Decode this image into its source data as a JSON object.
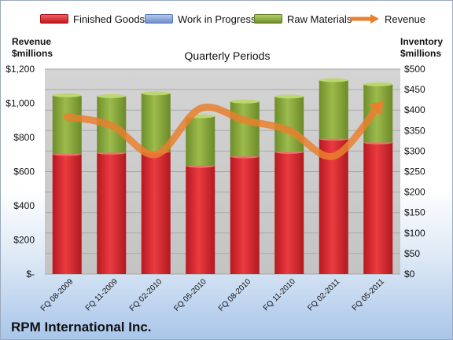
{
  "legend": {
    "finished": "Finished Goods",
    "wip": "Work in Progress",
    "raw": "Raw Materials",
    "revenue": "Revenue"
  },
  "titles": {
    "left_axis": "Revenue\n$millions",
    "right_axis": "Inventory\n$millions",
    "periods": "Quarterly Periods",
    "company": "RPM International Inc."
  },
  "colors": {
    "finished": "#d9252d",
    "wip": "#7f9fd6",
    "raw": "#86a83a",
    "revenue": "#e9802f",
    "plot_bg": "#c9c9c9"
  },
  "chart_data": {
    "type": "bar",
    "stacked": true,
    "title": "Quarterly Periods",
    "categories": [
      "FQ 08-2009",
      "FQ 11-2009",
      "FQ 02-2010",
      "FQ 05-2010",
      "FQ 08-2010",
      "FQ 11-2010",
      "FQ 02-2011",
      "FQ 05-2011"
    ],
    "series": [
      {
        "name": "Finished Goods",
        "axis": "right",
        "values": [
          293,
          296,
          299,
          264,
          287,
          298,
          330,
          321
        ]
      },
      {
        "name": "Work in Progress",
        "axis": "right",
        "values": [
          0,
          0,
          0,
          0,
          0,
          0,
          0,
          0
        ]
      },
      {
        "name": "Raw Materials",
        "axis": "right",
        "values": [
          143,
          138,
          142,
          121,
          134,
          135,
          143,
          142
        ]
      },
      {
        "name": "Revenue",
        "type": "line",
        "axis": "left",
        "values": [
          920,
          870,
          700,
          970,
          900,
          840,
          690,
          980
        ]
      }
    ],
    "ylabel_left": "Revenue $millions",
    "ylabel_right": "Inventory $millions",
    "ylim_left": [
      0,
      1200
    ],
    "ylim_right": [
      0,
      500
    ],
    "left_ticks": [
      "$-",
      "$200",
      "$400",
      "$600",
      "$800",
      "$1,000",
      "$1,200"
    ],
    "right_ticks": [
      "$0",
      "$50",
      "$100",
      "$150",
      "$200",
      "$250",
      "$300",
      "$350",
      "$400",
      "$450",
      "$500"
    ],
    "grid": true,
    "legend_position": "top"
  }
}
